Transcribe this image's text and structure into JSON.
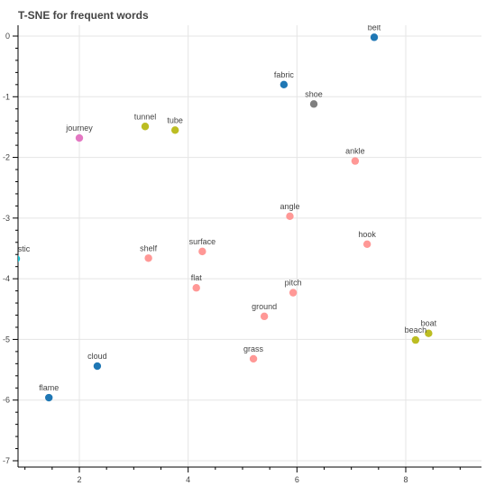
{
  "chart_data": {
    "type": "scatter",
    "title": "T-SNE for frequent words",
    "xlabel": "",
    "ylabel": "",
    "xlim": [
      0.75,
      9.3
    ],
    "ylim": [
      -7.05,
      0.2
    ],
    "xticks": [
      2,
      4,
      6,
      8
    ],
    "yticks": [
      0,
      -1,
      -2,
      -3,
      -4,
      -5,
      -6,
      -7
    ],
    "grid": true,
    "colors": {
      "blue": "#1f77b4",
      "gray": "#7f7f7f",
      "pink": "#e377c2",
      "olive": "#bcbd22",
      "salmon": "#ff9896",
      "cyan": "#17becf"
    },
    "points": [
      {
        "label": "belt",
        "x": 7.42,
        "y": -0.02,
        "color": "#1f77b4"
      },
      {
        "label": "fabric",
        "x": 5.76,
        "y": -0.8,
        "color": "#1f77b4"
      },
      {
        "label": "shoe",
        "x": 6.31,
        "y": -1.12,
        "color": "#7f7f7f"
      },
      {
        "label": "tunnel",
        "x": 3.21,
        "y": -1.49,
        "color": "#bcbd22"
      },
      {
        "label": "tube",
        "x": 3.76,
        "y": -1.55,
        "color": "#bcbd22"
      },
      {
        "label": "journey",
        "x": 2.0,
        "y": -1.68,
        "color": "#e377c2"
      },
      {
        "label": "ankle",
        "x": 7.07,
        "y": -2.06,
        "color": "#ff9896"
      },
      {
        "label": "angle",
        "x": 5.87,
        "y": -2.97,
        "color": "#ff9896"
      },
      {
        "label": "hook",
        "x": 7.29,
        "y": -3.43,
        "color": "#ff9896"
      },
      {
        "label": "surface",
        "x": 4.26,
        "y": -3.55,
        "color": "#ff9896"
      },
      {
        "label": "cteristic",
        "x": 0.84,
        "y": -3.67,
        "color": "#17becf"
      },
      {
        "label": "shelf",
        "x": 3.27,
        "y": -3.66,
        "color": "#ff9896"
      },
      {
        "label": "flat",
        "x": 4.15,
        "y": -4.15,
        "color": "#ff9896"
      },
      {
        "label": "pitch",
        "x": 5.93,
        "y": -4.23,
        "color": "#ff9896"
      },
      {
        "label": "ground",
        "x": 5.4,
        "y": -4.62,
        "color": "#ff9896"
      },
      {
        "label": "boat",
        "x": 8.42,
        "y": -4.9,
        "color": "#bcbd22"
      },
      {
        "label": "beach",
        "x": 8.18,
        "y": -5.01,
        "color": "#bcbd22"
      },
      {
        "label": "grass",
        "x": 5.2,
        "y": -5.32,
        "color": "#ff9896"
      },
      {
        "label": "cloud",
        "x": 2.33,
        "y": -5.44,
        "color": "#1f77b4"
      },
      {
        "label": "flame",
        "x": 1.44,
        "y": -5.96,
        "color": "#1f77b4"
      }
    ]
  }
}
